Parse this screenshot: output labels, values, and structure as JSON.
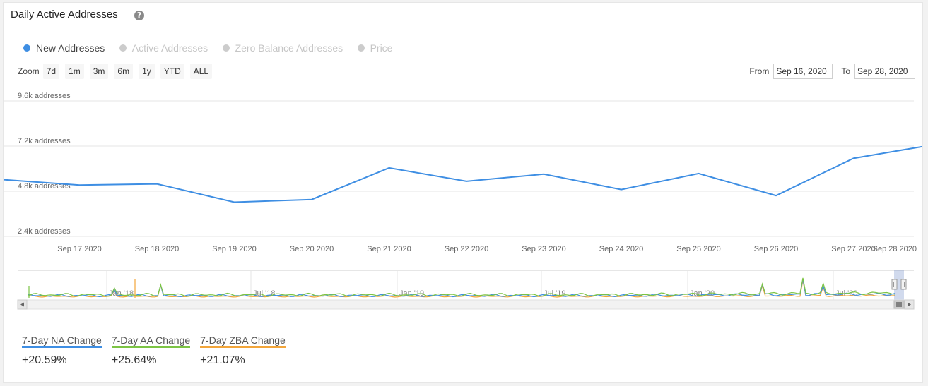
{
  "header": {
    "title": "Daily Active Addresses",
    "help_icon": "question-circle-icon"
  },
  "legend": [
    {
      "label": "New Addresses",
      "active": true,
      "color": "#3e8ee3"
    },
    {
      "label": "Active Addresses",
      "active": false,
      "color": "#cccccc"
    },
    {
      "label": "Zero Balance Addresses",
      "active": false,
      "color": "#cccccc"
    },
    {
      "label": "Price",
      "active": false,
      "color": "#cccccc"
    }
  ],
  "zoom": {
    "label": "Zoom",
    "buttons": [
      "7d",
      "1m",
      "3m",
      "6m",
      "1y",
      "YTD",
      "ALL"
    ]
  },
  "range": {
    "from_label": "From",
    "from_value": "Sep 16, 2020",
    "to_label": "To",
    "to_value": "Sep 28, 2020"
  },
  "chart_data": {
    "type": "line",
    "series": [
      {
        "name": "New Addresses",
        "color": "#3e8ee3",
        "x": [
          "Sep 16 2020",
          "Sep 17 2020",
          "Sep 18 2020",
          "Sep 19 2020",
          "Sep 20 2020",
          "Sep 21 2020",
          "Sep 22 2020",
          "Sep 23 2020",
          "Sep 24 2020",
          "Sep 25 2020",
          "Sep 26 2020",
          "Sep 27 2020",
          "Sep 28 2020"
        ],
        "values": [
          5420,
          5130,
          5190,
          4220,
          4360,
          6040,
          5330,
          5710,
          4890,
          5740,
          4570,
          6550,
          7250
        ]
      }
    ],
    "y_ticks": [
      "9.6k addresses",
      "7.2k addresses",
      "4.8k addresses",
      "2.4k addresses"
    ],
    "y_tick_values": [
      9600,
      7200,
      4800,
      2400
    ],
    "ylim": [
      2400,
      9600
    ],
    "x_tick_labels": [
      "Sep 17 2020",
      "Sep 18 2020",
      "Sep 19 2020",
      "Sep 20 2020",
      "Sep 21 2020",
      "Sep 22 2020",
      "Sep 23 2020",
      "Sep 24 2020",
      "Sep 25 2020",
      "Sep 26 2020",
      "Sep 27 2020",
      "Sep 28 2020"
    ],
    "grid": true,
    "legend_position": "top-left"
  },
  "navigator": {
    "labels": [
      "Jan '18",
      "Jul '18",
      "Jan '19",
      "Jul '19",
      "Jan '20",
      "Jul '20"
    ],
    "series_colors": [
      "#3e8ee3",
      "#7cc444",
      "#f2a53a"
    ]
  },
  "stats": [
    {
      "label": "7-Day NA Change",
      "value": "+20.59%",
      "color": "#3e8ee3"
    },
    {
      "label": "7-Day AA Change",
      "value": "+25.64%",
      "color": "#7cc444"
    },
    {
      "label": "7-Day ZBA Change",
      "value": "+21.07%",
      "color": "#f2a53a"
    }
  ]
}
